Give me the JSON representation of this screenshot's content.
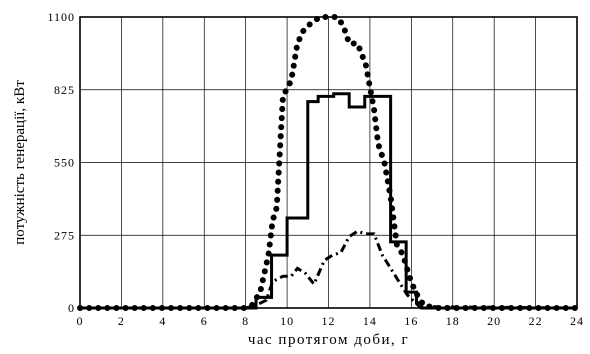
{
  "chart_data": {
    "type": "line",
    "title": "",
    "xlabel": "час протягом доби, г",
    "ylabel": "потужність генерації, кВт",
    "xlim": [
      0,
      24
    ],
    "ylim": [
      0,
      1100
    ],
    "x_ticks": [
      0,
      2,
      4,
      6,
      8,
      10,
      12,
      14,
      16,
      18,
      20,
      22,
      24
    ],
    "x_tick_labels": [
      "0",
      "2",
      "4",
      "6",
      "8",
      "10",
      "12",
      "14",
      "16",
      "18",
      "20",
      "22",
      "24"
    ],
    "y_ticks": [
      0,
      275,
      550,
      825,
      1100
    ],
    "y_tick_labels": [
      "0",
      "275",
      "550",
      "825",
      "1100"
    ],
    "grid": true,
    "legend": "none",
    "series": [
      {
        "style": "solid",
        "color": "#000000",
        "step": true,
        "x": [
          0,
          8,
          8.5,
          9.25,
          10,
          11,
          11.5,
          12.25,
          13,
          13.75,
          15,
          15.75,
          16.25,
          16.5,
          24
        ],
        "values": [
          0,
          0,
          40,
          200,
          340,
          780,
          800,
          810,
          760,
          800,
          250,
          60,
          20,
          0,
          0
        ]
      },
      {
        "style": "dotted-bold",
        "color": "#000000",
        "x": [
          0,
          8,
          8.3,
          8.7,
          9.1,
          9.3,
          9.5,
          9.8,
          10.2,
          10.5,
          10.8,
          11.2,
          11.6,
          12,
          12.4,
          12.7,
          13,
          13.4,
          13.8,
          14.2,
          14.4,
          14.7,
          15,
          15.3,
          15.6,
          15.9,
          16.2,
          16.6,
          17.2,
          24
        ],
        "values": [
          0,
          0,
          10,
          60,
          200,
          330,
          380,
          800,
          860,
          1000,
          1050,
          1080,
          1100,
          1100,
          1100,
          1070,
          1000,
          1000,
          920,
          750,
          620,
          550,
          420,
          240,
          200,
          120,
          60,
          10,
          0,
          0
        ]
      },
      {
        "style": "dash-dot",
        "color": "#000000",
        "x": [
          0,
          8,
          8.5,
          9,
          9.3,
          9.8,
          10.2,
          10.5,
          10.9,
          11.3,
          11.8,
          12.2,
          12.6,
          13,
          13.4,
          13.8,
          14.2,
          14.6,
          15,
          15.4,
          15.8,
          16.4,
          24
        ],
        "values": [
          0,
          0,
          10,
          30,
          100,
          120,
          120,
          150,
          130,
          90,
          180,
          200,
          210,
          270,
          290,
          280,
          280,
          200,
          150,
          100,
          50,
          5,
          0
        ]
      }
    ]
  }
}
